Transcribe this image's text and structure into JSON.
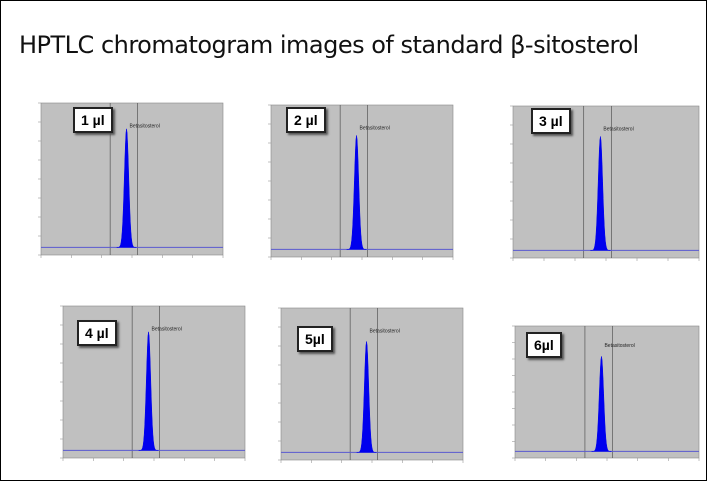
{
  "title": "HPTLC chromatogram images of standard β-sitosterol",
  "colors": {
    "plot_bg": "#c0c0c0",
    "peak": "#0000ee",
    "baseline": "#5a5ad0",
    "marker_line": "#555555"
  },
  "chart_data": [
    {
      "type": "area",
      "label": "1 µl",
      "peak_name": "Betasitosterol",
      "peak_rf": 0.47,
      "peak_height": 0.78
    },
    {
      "type": "area",
      "label": "2 µl",
      "peak_name": "Betasitosterol",
      "peak_rf": 0.47,
      "peak_height": 0.75
    },
    {
      "type": "area",
      "label": "3 µl",
      "peak_name": "Betasitosterol",
      "peak_rf": 0.47,
      "peak_height": 0.75
    },
    {
      "type": "area",
      "label": "4 µl",
      "peak_name": "Betasitosterol",
      "peak_rf": 0.47,
      "peak_height": 0.78
    },
    {
      "type": "area",
      "label": "5µl",
      "peak_name": "Betasitosterol",
      "peak_rf": 0.47,
      "peak_height": 0.73
    },
    {
      "type": "area",
      "label": "6µl",
      "peak_name": "Betasitosterol",
      "peak_rf": 0.47,
      "peak_height": 0.72
    }
  ]
}
